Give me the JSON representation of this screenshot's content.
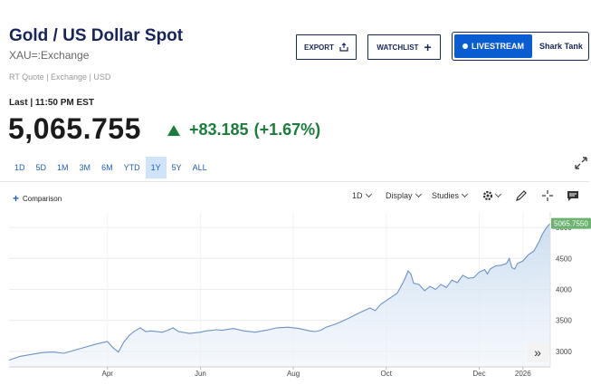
{
  "header": {
    "title": "Gold / US Dollar Spot",
    "symbol": "XAU=:Exchange",
    "meta": "RT Quote | Exchange | USD"
  },
  "actions": {
    "export_label": "EXPORT",
    "watchlist_label": "WATCHLIST",
    "livestream_label": "LIVESTREAM",
    "livestream_show": "Shark Tank"
  },
  "quote": {
    "last_label": "Last | 11:50 PM EST",
    "price": "5,065.755",
    "change": "+83.185",
    "change_pct": "(+1.67%)",
    "change_color": "#1a7d3b"
  },
  "ranges": [
    "1D",
    "5D",
    "1M",
    "3M",
    "6M",
    "YTD",
    "1Y",
    "5Y",
    "ALL"
  ],
  "active_range": "1Y",
  "toolbar": {
    "comparison_label": "Comparison",
    "interval": "1D",
    "display_label": "Display",
    "studies_label": "Studies",
    "icons": [
      "gear-icon",
      "pencil-icon",
      "crosshair-icon",
      "comment-icon"
    ]
  },
  "chart_data": {
    "type": "area",
    "x_tick_labels": [
      "Apr",
      "Jun",
      "Aug",
      "Oct",
      "Dec",
      "2026"
    ],
    "y_tick_labels": [
      "3000",
      "3500",
      "4000",
      "4500",
      "5000"
    ],
    "ylim": [
      2750,
      5250
    ],
    "last_value_label": "5065.7550",
    "line_color": "#6c93c6",
    "fill_color": "#c9dbef",
    "series": [
      {
        "points": [
          [
            0,
            2860
          ],
          [
            0.02,
            2920
          ],
          [
            0.04,
            2950
          ],
          [
            0.06,
            2980
          ],
          [
            0.08,
            2990
          ],
          [
            0.1,
            2970
          ],
          [
            0.12,
            3020
          ],
          [
            0.14,
            3070
          ],
          [
            0.16,
            3120
          ],
          [
            0.18,
            3160
          ],
          [
            0.19,
            3060
          ],
          [
            0.2,
            2990
          ],
          [
            0.21,
            3150
          ],
          [
            0.22,
            3260
          ],
          [
            0.23,
            3330
          ],
          [
            0.24,
            3380
          ],
          [
            0.25,
            3320
          ],
          [
            0.26,
            3330
          ],
          [
            0.28,
            3310
          ],
          [
            0.29,
            3340
          ],
          [
            0.3,
            3380
          ],
          [
            0.31,
            3320
          ],
          [
            0.33,
            3290
          ],
          [
            0.35,
            3310
          ],
          [
            0.36,
            3330
          ],
          [
            0.38,
            3350
          ],
          [
            0.39,
            3340
          ],
          [
            0.41,
            3370
          ],
          [
            0.43,
            3330
          ],
          [
            0.45,
            3310
          ],
          [
            0.47,
            3340
          ],
          [
            0.49,
            3380
          ],
          [
            0.51,
            3390
          ],
          [
            0.53,
            3370
          ],
          [
            0.55,
            3330
          ],
          [
            0.56,
            3320
          ],
          [
            0.57,
            3340
          ],
          [
            0.58,
            3390
          ],
          [
            0.6,
            3450
          ],
          [
            0.62,
            3530
          ],
          [
            0.64,
            3620
          ],
          [
            0.66,
            3700
          ],
          [
            0.67,
            3660
          ],
          [
            0.68,
            3760
          ],
          [
            0.69,
            3820
          ],
          [
            0.7,
            3880
          ],
          [
            0.71,
            3940
          ],
          [
            0.72,
            4100
          ],
          [
            0.725,
            4190
          ],
          [
            0.73,
            4300
          ],
          [
            0.735,
            4250
          ],
          [
            0.74,
            4100
          ],
          [
            0.75,
            4080
          ],
          [
            0.76,
            3980
          ],
          [
            0.77,
            4050
          ],
          [
            0.78,
            4000
          ],
          [
            0.79,
            4080
          ],
          [
            0.8,
            4030
          ],
          [
            0.81,
            4150
          ],
          [
            0.82,
            4110
          ],
          [
            0.83,
            4230
          ],
          [
            0.84,
            4180
          ],
          [
            0.85,
            4190
          ],
          [
            0.86,
            4280
          ],
          [
            0.87,
            4320
          ],
          [
            0.875,
            4250
          ],
          [
            0.88,
            4330
          ],
          [
            0.89,
            4380
          ],
          [
            0.9,
            4390
          ],
          [
            0.91,
            4420
          ],
          [
            0.915,
            4500
          ],
          [
            0.92,
            4350
          ],
          [
            0.925,
            4330
          ],
          [
            0.93,
            4420
          ],
          [
            0.94,
            4460
          ],
          [
            0.95,
            4560
          ],
          [
            0.96,
            4620
          ],
          [
            0.965,
            4700
          ],
          [
            0.97,
            4780
          ],
          [
            0.975,
            4880
          ],
          [
            0.98,
            4960
          ],
          [
            0.985,
            5020
          ],
          [
            0.99,
            5065.755
          ]
        ]
      }
    ]
  }
}
